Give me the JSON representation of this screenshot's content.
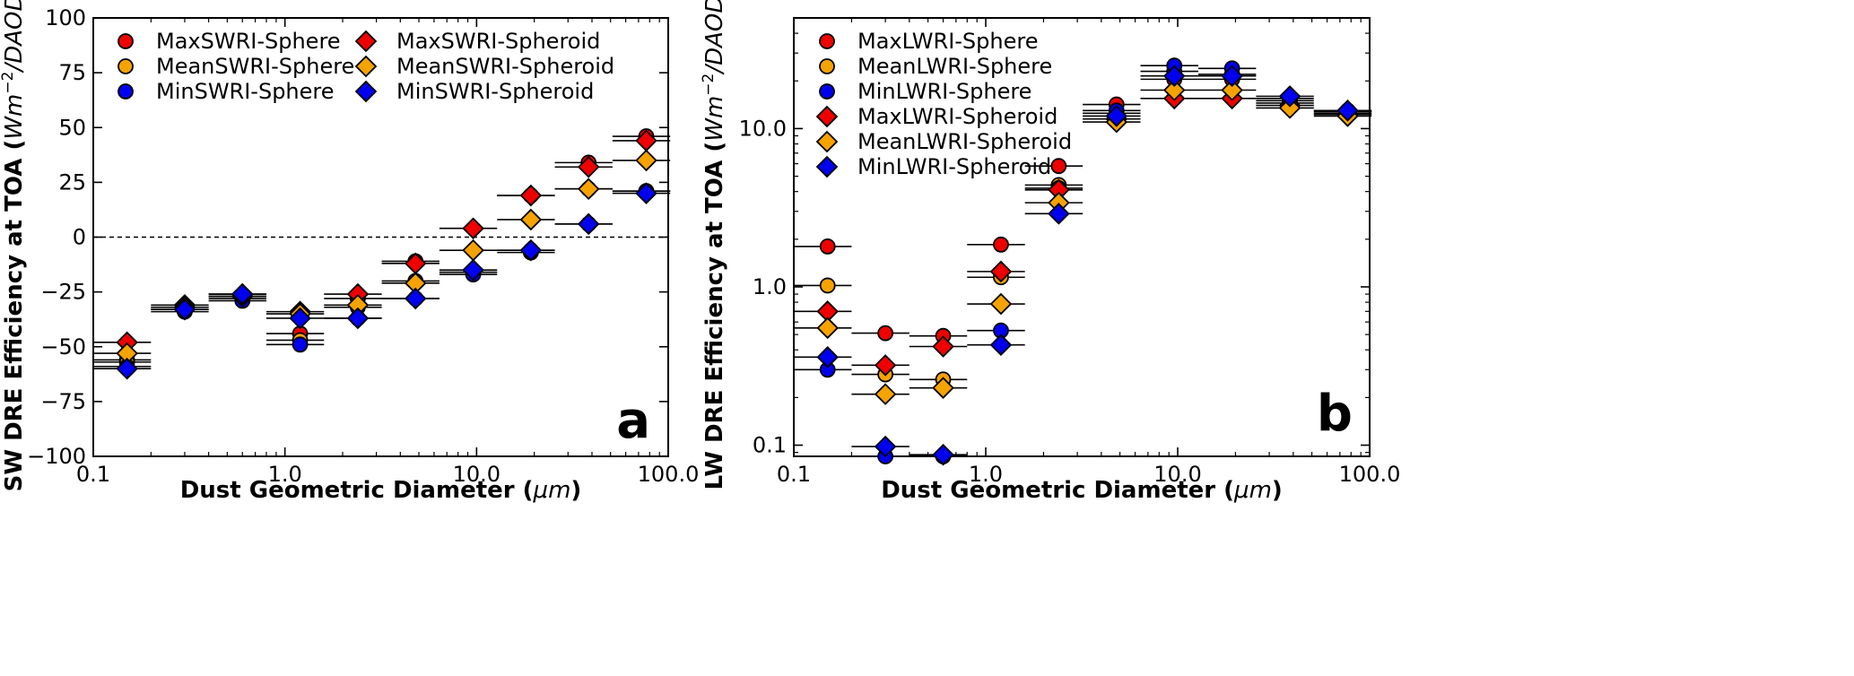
{
  "colors": {
    "Max": "#ee0000",
    "Mean": "#f5a300",
    "Min": "#0000ee",
    "zero_line": "#000000"
  },
  "chart_data": [
    {
      "type": "scatter",
      "panel_label": "a",
      "xlabel": "Dust Geometric Diameter (",
      "xlabel_unit": "μm",
      "xlabel_tail": ")",
      "ylabel": "SW DRE Efficiency at TOA (",
      "ylabel_unit": "Wm",
      "ylabel_sup": "−2",
      "ylabel_tail_italic": "/DAOD",
      "ylabel_tail": ")",
      "xscale": "log",
      "yscale": "linear",
      "xlim": [
        0.1,
        100.0
      ],
      "ylim": [
        -100,
        100
      ],
      "xticks": [
        0.1,
        1.0,
        10.0,
        100.0
      ],
      "xtick_labels": [
        "0.1",
        "1.0",
        "10.0",
        "100.0"
      ],
      "yticks": [
        100,
        75,
        50,
        25,
        0,
        -25,
        -50,
        -75,
        -100
      ],
      "ytick_labels": [
        "100",
        "75",
        "50",
        "25",
        "0",
        "−25",
        "−50",
        "−75",
        "−100"
      ],
      "zero_line": true,
      "legend_placement": "top-left, two columns",
      "bins": [
        {
          "center": 0.15,
          "xmin": 0.1,
          "xmax": 0.2
        },
        {
          "center": 0.3,
          "xmin": 0.2,
          "xmax": 0.4
        },
        {
          "center": 0.6,
          "xmin": 0.4,
          "xmax": 0.8
        },
        {
          "center": 1.2,
          "xmin": 0.8,
          "xmax": 1.6
        },
        {
          "center": 2.4,
          "xmin": 1.6,
          "xmax": 3.2
        },
        {
          "center": 4.8,
          "xmin": 3.2,
          "xmax": 6.4
        },
        {
          "center": 9.6,
          "xmin": 6.4,
          "xmax": 12.8
        },
        {
          "center": 19.2,
          "xmin": 12.8,
          "xmax": 25.6
        },
        {
          "center": 38.4,
          "xmin": 25.6,
          "xmax": 51.2
        },
        {
          "center": 76.8,
          "xmin": 51.2,
          "xmax": 102.4
        }
      ],
      "series": [
        {
          "name": "MaxSWRI-Sphere",
          "marker": "circle",
          "color_key": "Max",
          "values": [
            -56,
            -32,
            -27,
            -44,
            -28,
            -11,
            -16,
            19,
            34,
            46
          ]
        },
        {
          "name": "MeanSWRI-Sphere",
          "marker": "circle",
          "color_key": "Mean",
          "values": [
            -57,
            -33,
            -28,
            -47,
            -32,
            -20,
            -16,
            -6,
            22,
            21
          ]
        },
        {
          "name": "MinSWRI-Sphere",
          "marker": "circle",
          "color_key": "Min",
          "values": [
            -59,
            -34,
            -29,
            -49,
            -37,
            -28,
            -17,
            -7,
            6,
            21
          ]
        },
        {
          "name": "MaxSWRI-Spheroid",
          "marker": "diamond",
          "color_key": "Max",
          "values": [
            -48,
            -31,
            -26,
            -34,
            -26,
            -12,
            4,
            19,
            32,
            44
          ]
        },
        {
          "name": "MeanSWRI-Spheroid",
          "marker": "diamond",
          "color_key": "Mean",
          "values": [
            -53,
            -32,
            -27,
            -35,
            -31,
            -21,
            -6,
            8,
            22,
            35
          ]
        },
        {
          "name": "MinSWRI-Spheroid",
          "marker": "diamond",
          "color_key": "Min",
          "values": [
            -60,
            -33,
            -26,
            -37,
            -37,
            -28,
            -15,
            -6,
            6,
            20
          ]
        }
      ]
    },
    {
      "type": "scatter",
      "panel_label": "b",
      "xlabel": "Dust Geometric Diameter (",
      "xlabel_unit": "μm",
      "xlabel_tail": ")",
      "ylabel": "LW DRE Efficiency at TOA (",
      "ylabel_unit": "Wm",
      "ylabel_sup": "−2",
      "ylabel_tail_italic": "/DAOD",
      "ylabel_tail": ")",
      "xscale": "log",
      "yscale": "log",
      "xlim": [
        0.1,
        100.0
      ],
      "ylim": [
        0.085,
        50
      ],
      "xticks": [
        0.1,
        1.0,
        10.0,
        100.0
      ],
      "xtick_labels": [
        "0.1",
        "1.0",
        "10.0",
        "100.0"
      ],
      "yticks": [
        10.0,
        1.0,
        0.1
      ],
      "ytick_labels": [
        "10.0",
        "1.0",
        "0.1"
      ],
      "zero_line": false,
      "legend_placement": "top-left, one column",
      "bins": [
        {
          "center": 0.15,
          "xmin": 0.1,
          "xmax": 0.2
        },
        {
          "center": 0.3,
          "xmin": 0.2,
          "xmax": 0.4
        },
        {
          "center": 0.6,
          "xmin": 0.4,
          "xmax": 0.8
        },
        {
          "center": 1.2,
          "xmin": 0.8,
          "xmax": 1.6
        },
        {
          "center": 2.4,
          "xmin": 1.6,
          "xmax": 3.2
        },
        {
          "center": 4.8,
          "xmin": 3.2,
          "xmax": 6.4
        },
        {
          "center": 9.6,
          "xmin": 6.4,
          "xmax": 12.8
        },
        {
          "center": 19.2,
          "xmin": 12.8,
          "xmax": 25.6
        },
        {
          "center": 38.4,
          "xmin": 25.6,
          "xmax": 51.2
        },
        {
          "center": 76.8,
          "xmin": 51.2,
          "xmax": 102.4
        }
      ],
      "series": [
        {
          "name": "MaxLWRI-Sphere",
          "marker": "circle",
          "color_key": "Max",
          "values": [
            1.8,
            0.51,
            0.49,
            1.85,
            5.8,
            14.2,
            20.5,
            20.5,
            15.0,
            12.5
          ]
        },
        {
          "name": "MeanLWRI-Sphere",
          "marker": "circle",
          "color_key": "Mean",
          "values": [
            1.02,
            0.28,
            0.26,
            1.15,
            4.4,
            12.5,
            23.0,
            22.0,
            14.5,
            12.8
          ]
        },
        {
          "name": "MinLWRI-Sphere",
          "marker": "circle",
          "color_key": "Min",
          "values": [
            0.3,
            0.085,
            0.085,
            0.53,
            4.2,
            13.0,
            25.0,
            24.0,
            15.5,
            13.0
          ]
        },
        {
          "name": "MaxLWRI-Spheroid",
          "marker": "diamond",
          "color_key": "Max",
          "values": [
            0.7,
            0.32,
            0.42,
            1.25,
            4.1,
            11.5,
            15.5,
            15.5,
            14.0,
            12.3
          ]
        },
        {
          "name": "MeanLWRI-Spheroid",
          "marker": "diamond",
          "color_key": "Mean",
          "values": [
            0.55,
            0.21,
            0.23,
            0.78,
            3.4,
            11.0,
            17.5,
            17.5,
            13.5,
            12.0
          ]
        },
        {
          "name": "MinLWRI-Spheroid",
          "marker": "diamond",
          "color_key": "Min",
          "values": [
            0.36,
            0.098,
            0.087,
            0.43,
            2.9,
            12.0,
            21.5,
            21.5,
            16.0,
            13.0
          ]
        }
      ]
    }
  ]
}
